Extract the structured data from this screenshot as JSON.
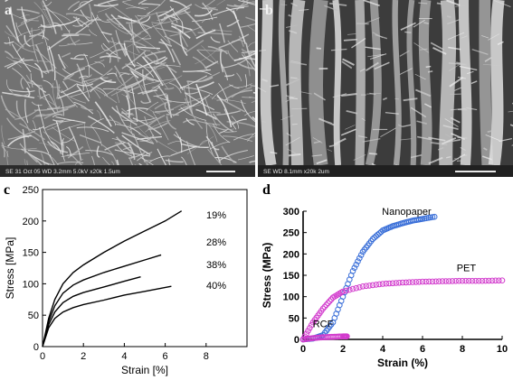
{
  "panels": {
    "a": {
      "label": "a",
      "scale_bar_text": "SE    31 Oct 05          WD 3.2mm  5.0kV x20k  1.5um"
    },
    "b": {
      "label": "b",
      "scale_bar_text": "SE                      WD 8.1mm       x20k     2um"
    },
    "c": {
      "label": "c"
    },
    "d": {
      "label": "d"
    }
  },
  "colors": {
    "sem_bg": "#6f6f6f",
    "sem_fiber": "#d9d9d9",
    "nanopaper": "#3a6fd8",
    "pet": "#d23ccd",
    "rcf": "#d23ccd"
  },
  "chart_data": [
    {
      "type": "line",
      "xlabel": "Strain [%]",
      "ylabel": "Stress [MPa]",
      "xlim": [
        0,
        10
      ],
      "ylim": [
        0,
        250
      ],
      "xticks": [
        0,
        2,
        4,
        6,
        8
      ],
      "yticks": [
        0,
        50,
        100,
        150,
        200,
        250
      ],
      "grid": false,
      "legend": "right, inline labels",
      "series": [
        {
          "name": "19%",
          "x": [
            0,
            0.3,
            0.6,
            1,
            1.5,
            2,
            3,
            4,
            5,
            6,
            6.8
          ],
          "y": [
            0,
            45,
            75,
            100,
            118,
            130,
            150,
            168,
            184,
            200,
            216
          ]
        },
        {
          "name": "28%",
          "x": [
            0,
            0.3,
            0.6,
            1,
            1.5,
            2,
            3,
            4,
            5,
            5.8
          ],
          "y": [
            0,
            40,
            65,
            85,
            98,
            106,
            118,
            128,
            138,
            146
          ]
        },
        {
          "name": "38%",
          "x": [
            0,
            0.3,
            0.6,
            1,
            1.5,
            2,
            3,
            4,
            4.8
          ],
          "y": [
            0,
            35,
            55,
            70,
            80,
            86,
            95,
            104,
            111
          ]
        },
        {
          "name": "40%",
          "x": [
            0,
            0.3,
            0.6,
            1,
            1.5,
            2,
            3,
            4,
            5,
            6.3
          ],
          "y": [
            0,
            30,
            45,
            55,
            62,
            67,
            74,
            82,
            88,
            96
          ]
        }
      ]
    },
    {
      "type": "scatter",
      "xlabel": "Strain (%)",
      "ylabel": "Stress (MPa)",
      "xlim": [
        0,
        10
      ],
      "ylim": [
        0,
        300
      ],
      "xticks": [
        0,
        2,
        4,
        6,
        8,
        10
      ],
      "yticks": [
        0,
        50,
        100,
        150,
        200,
        250,
        300
      ],
      "grid": false,
      "legend": "inline labels",
      "series": [
        {
          "name": "Nanopaper",
          "x": [
            0,
            0.5,
            1,
            1.5,
            2,
            2.5,
            3,
            3.5,
            4,
            4.5,
            5,
            5.5,
            6,
            6.6
          ],
          "y": [
            0,
            2,
            10,
            40,
            100,
            160,
            205,
            235,
            255,
            265,
            272,
            278,
            282,
            287
          ]
        },
        {
          "name": "PET",
          "x": [
            0,
            0.5,
            1,
            1.5,
            2,
            3,
            4,
            5,
            6,
            7,
            8,
            9,
            10
          ],
          "y": [
            0,
            40,
            72,
            98,
            112,
            124,
            130,
            133,
            135,
            136,
            137,
            137,
            138
          ]
        },
        {
          "name": "RCF",
          "x": [
            0,
            0.5,
            1,
            1.5,
            2,
            2.2
          ],
          "y": [
            0,
            3,
            5,
            6,
            7,
            7
          ]
        }
      ]
    }
  ]
}
